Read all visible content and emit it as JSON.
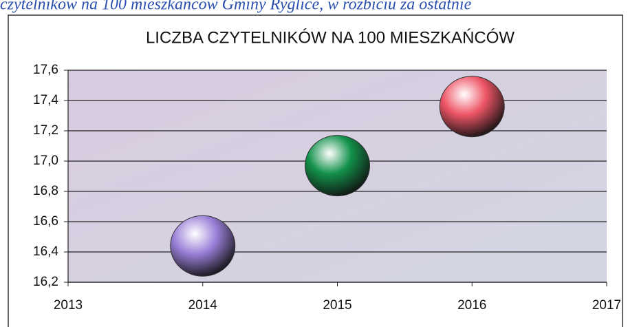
{
  "caption": "czytelników na 100 mieszkańców Gminy Ryglice, w rozbiciu za ostatnie",
  "chart_data": {
    "type": "scatter",
    "title": "LICZBA CZYTELNIKÓW NA 100 MIESZKAŃCÓW",
    "x": [
      2014,
      2015,
      2016
    ],
    "values": [
      16.44,
      16.97,
      17.36
    ],
    "colors": [
      "#9a7fd8",
      "#12914a",
      "#ee5566"
    ],
    "xlim": [
      2013,
      2017
    ],
    "xticks": [
      2013,
      2014,
      2015,
      2016,
      2017
    ],
    "ylim": [
      16.2,
      17.6
    ],
    "yticks": [
      {
        "value": 16.2,
        "label": "16,2"
      },
      {
        "value": 16.4,
        "label": "16,4"
      },
      {
        "value": 16.6,
        "label": "16,6"
      },
      {
        "value": 16.8,
        "label": "16,8"
      },
      {
        "value": 17.0,
        "label": "17,0"
      },
      {
        "value": 17.2,
        "label": "17,2"
      },
      {
        "value": 17.4,
        "label": "17,4"
      },
      {
        "value": 17.6,
        "label": "17,6"
      }
    ],
    "grid": true
  }
}
